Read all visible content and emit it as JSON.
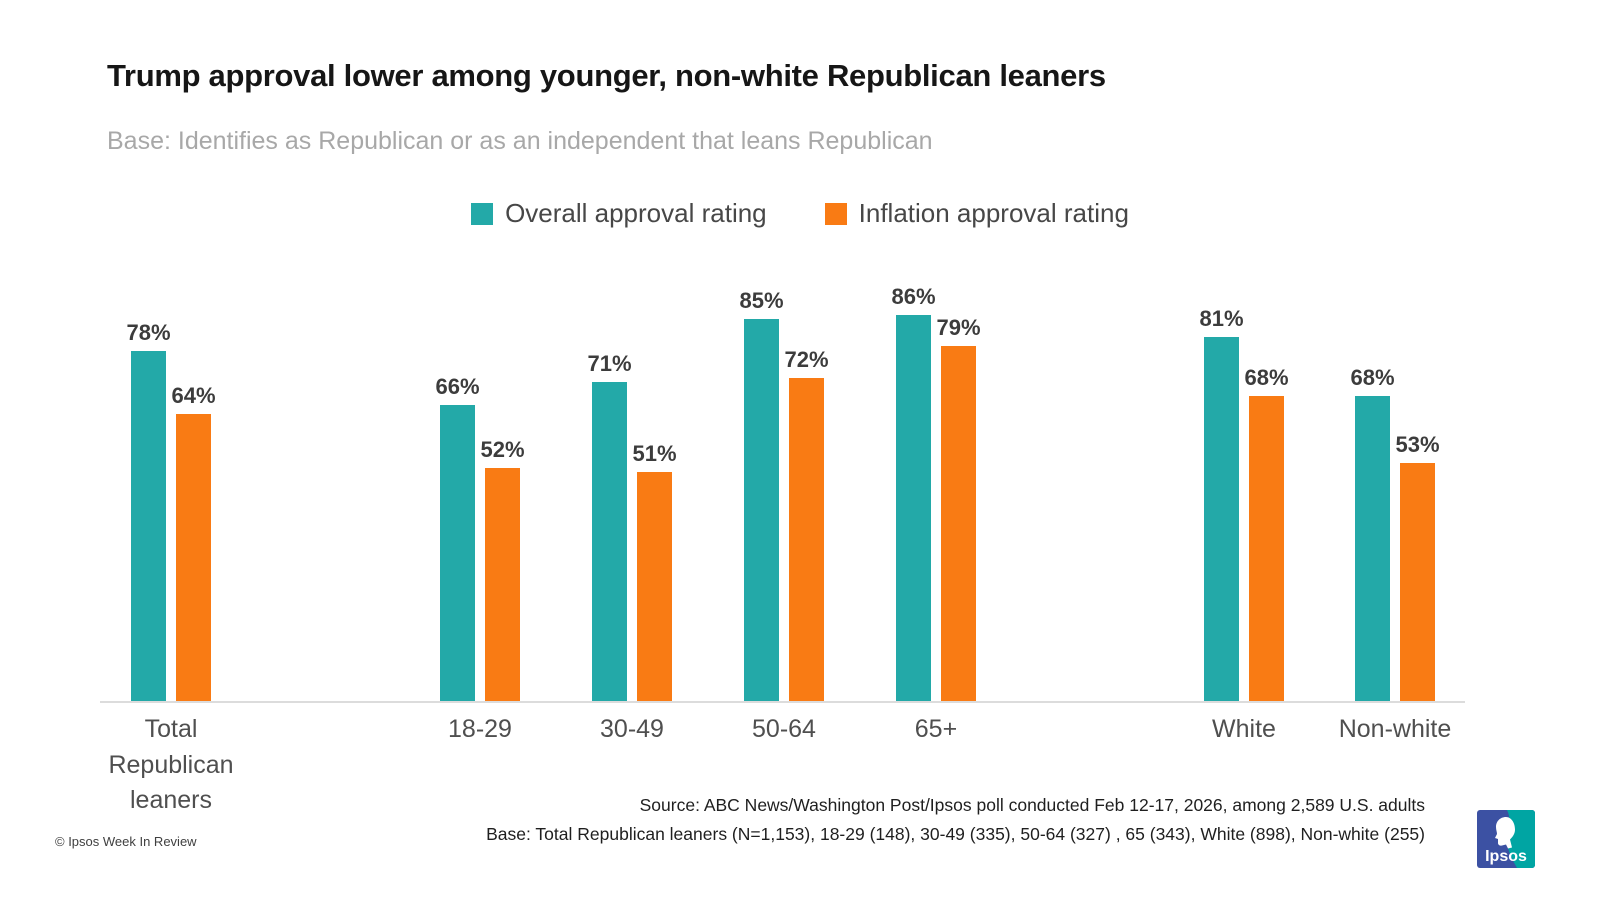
{
  "title": "Trump approval lower among younger, non-white Republican leaners",
  "subtitle": "Base: Identifies as Republican or as an independent that leans Republican",
  "legend": [
    {
      "label": "Overall approval rating",
      "color": "#23a9a8"
    },
    {
      "label": "Inflation approval rating",
      "color": "#f97b14"
    }
  ],
  "chart_data": {
    "type": "bar",
    "title": "Trump approval lower among younger, non-white Republican leaners",
    "categories": [
      "Total Republican leaners",
      "18-29",
      "30-49",
      "50-64",
      "65+",
      "White",
      "Non-white"
    ],
    "series": [
      {
        "name": "Overall approval rating",
        "color": "#23a9a8",
        "values": [
          78,
          66,
          71,
          85,
          86,
          81,
          68
        ]
      },
      {
        "name": "Inflation approval rating",
        "color": "#f97b14",
        "values": [
          64,
          52,
          51,
          72,
          79,
          68,
          53
        ]
      }
    ],
    "value_suffix": "%",
    "ylim": [
      0,
      100
    ],
    "grid": false,
    "legend_position": "top",
    "xlabel": "",
    "ylabel": ""
  },
  "footer": {
    "source_line1": "Source: ABC News/Washington Post/Ipsos poll conducted Feb 12-17, 2026, among 2,589 U.S. adults",
    "source_line2": "Base: Total Republican leaners (N=1,153), 18-29 (148), 30-49 (335), 50-64 (327) , 65 (343), White (898), Non-white (255)",
    "watermark": "© Ipsos Week In Review",
    "logo_text": "Ipsos"
  },
  "colors": {
    "overall": "#23a9a8",
    "inflation": "#f97b14",
    "axis_line": "#dcdcdc",
    "logo_blue": "#3c51a3",
    "logo_teal": "#00a5a3"
  }
}
